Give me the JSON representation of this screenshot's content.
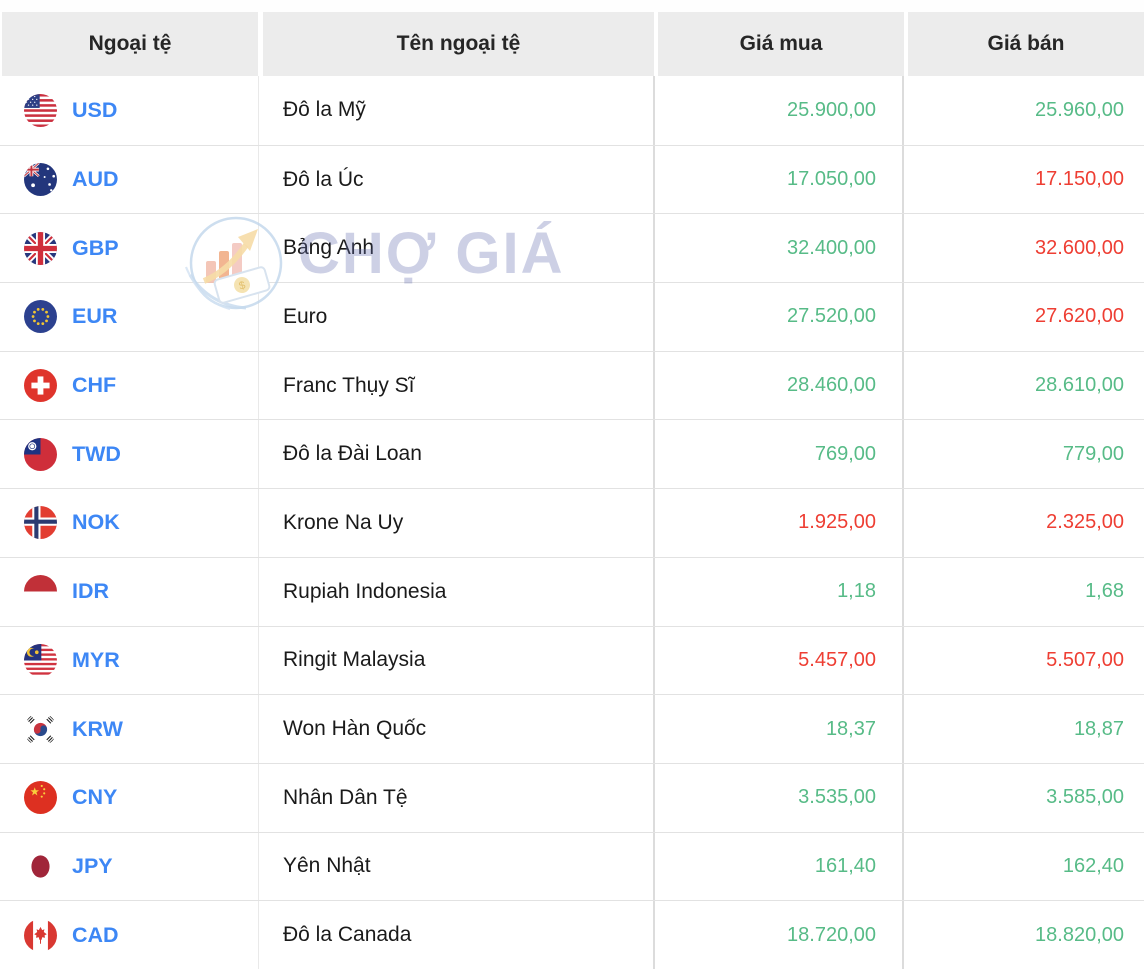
{
  "watermark": {
    "text": "CHỢ GIÁ"
  },
  "colors": {
    "up": "#57bb87",
    "down": "#ee3e33",
    "code_blue": "#3d87f5"
  },
  "table": {
    "headers": [
      "Ngoại tệ",
      "Tên ngoại tệ",
      "Giá mua",
      "Giá bán"
    ],
    "rows": [
      {
        "code": "USD",
        "flag": "usd-flag-icon",
        "name": "Đô la Mỹ",
        "buy": "25.900,00",
        "buy_trend": "up",
        "sell": "25.960,00",
        "sell_trend": "up"
      },
      {
        "code": "AUD",
        "flag": "aud-flag-icon",
        "name": "Đô la Úc",
        "buy": "17.050,00",
        "buy_trend": "up",
        "sell": "17.150,00",
        "sell_trend": "down"
      },
      {
        "code": "GBP",
        "flag": "gbp-flag-icon",
        "name": "Bảng Anh",
        "buy": "32.400,00",
        "buy_trend": "up",
        "sell": "32.600,00",
        "sell_trend": "down"
      },
      {
        "code": "EUR",
        "flag": "eur-flag-icon",
        "name": "Euro",
        "buy": "27.520,00",
        "buy_trend": "up",
        "sell": "27.620,00",
        "sell_trend": "down"
      },
      {
        "code": "CHF",
        "flag": "chf-flag-icon",
        "name": "Franc Thụy Sĩ",
        "buy": "28.460,00",
        "buy_trend": "up",
        "sell": "28.610,00",
        "sell_trend": "up"
      },
      {
        "code": "TWD",
        "flag": "twd-flag-icon",
        "name": "Đô la Đài Loan",
        "buy": "769,00",
        "buy_trend": "up",
        "sell": "779,00",
        "sell_trend": "up"
      },
      {
        "code": "NOK",
        "flag": "nok-flag-icon",
        "name": "Krone Na Uy",
        "buy": "1.925,00",
        "buy_trend": "down",
        "sell": "2.325,00",
        "sell_trend": "down"
      },
      {
        "code": "IDR",
        "flag": "idr-flag-icon",
        "name": "Rupiah Indonesia",
        "buy": "1,18",
        "buy_trend": "up",
        "sell": "1,68",
        "sell_trend": "up"
      },
      {
        "code": "MYR",
        "flag": "myr-flag-icon",
        "name": "Ringit Malaysia",
        "buy": "5.457,00",
        "buy_trend": "down",
        "sell": "5.507,00",
        "sell_trend": "down"
      },
      {
        "code": "KRW",
        "flag": "krw-flag-icon",
        "name": "Won Hàn Quốc",
        "buy": "18,37",
        "buy_trend": "up",
        "sell": "18,87",
        "sell_trend": "up"
      },
      {
        "code": "CNY",
        "flag": "cny-flag-icon",
        "name": "Nhân Dân Tệ",
        "buy": "3.535,00",
        "buy_trend": "up",
        "sell": "3.585,00",
        "sell_trend": "up"
      },
      {
        "code": "JPY",
        "flag": "jpy-flag-icon",
        "name": "Yên Nhật",
        "buy": "161,40",
        "buy_trend": "up",
        "sell": "162,40",
        "sell_trend": "up"
      },
      {
        "code": "CAD",
        "flag": "cad-flag-icon",
        "name": "Đô la Canada",
        "buy": "18.720,00",
        "buy_trend": "up",
        "sell": "18.820,00",
        "sell_trend": "up"
      }
    ]
  }
}
